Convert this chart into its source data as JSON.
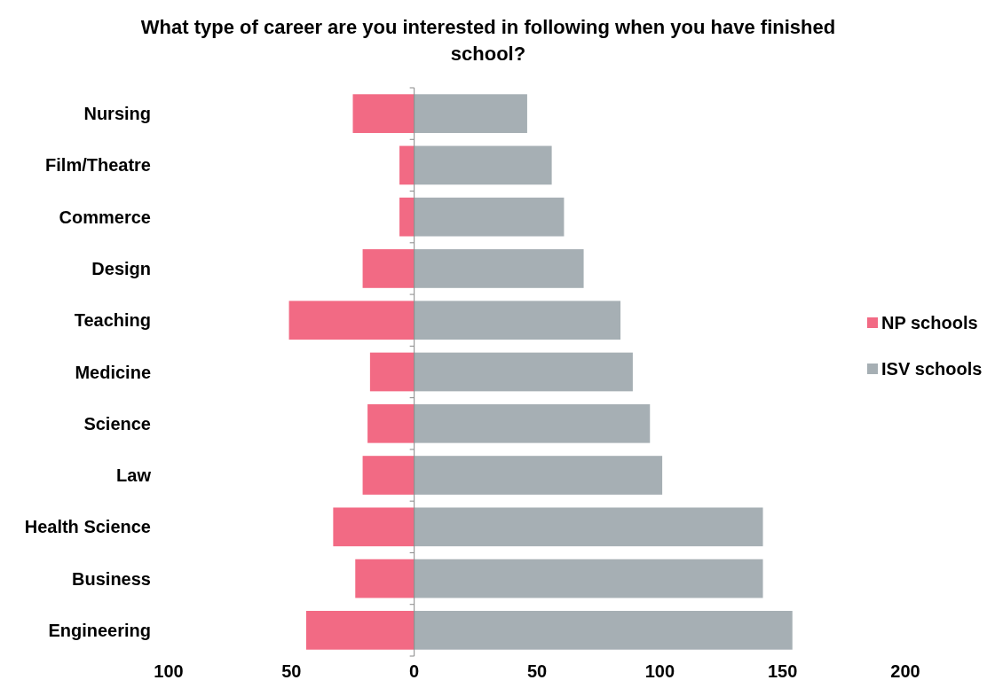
{
  "chart_data": {
    "type": "bar",
    "orientation": "horizontal",
    "stacked": true,
    "title": "What type of career are you interested in following when you have finished school?",
    "categories": [
      "Nursing",
      "Film/Theatre",
      "Commerce",
      "Design",
      "Teaching",
      "Medicine",
      "Science",
      "Law",
      "Health Science",
      "Business",
      "Engineering"
    ],
    "series": [
      {
        "name": "NP schools",
        "color": "#f26a84",
        "values": [
          -25,
          -6,
          -6,
          -21,
          -51,
          -18,
          -19,
          -21,
          -33,
          -24,
          -44
        ]
      },
      {
        "name": "ISV schools",
        "color": "#a6afb4",
        "values": [
          46,
          56,
          61,
          69,
          84,
          89,
          96,
          101,
          142,
          142,
          154
        ]
      }
    ],
    "xlim": [
      -100,
      200
    ],
    "xticks": [
      {
        "value": -100,
        "label": "100"
      },
      {
        "value": -50,
        "label": "50"
      },
      0,
      50,
      100,
      150,
      200
    ],
    "legend": "right"
  }
}
